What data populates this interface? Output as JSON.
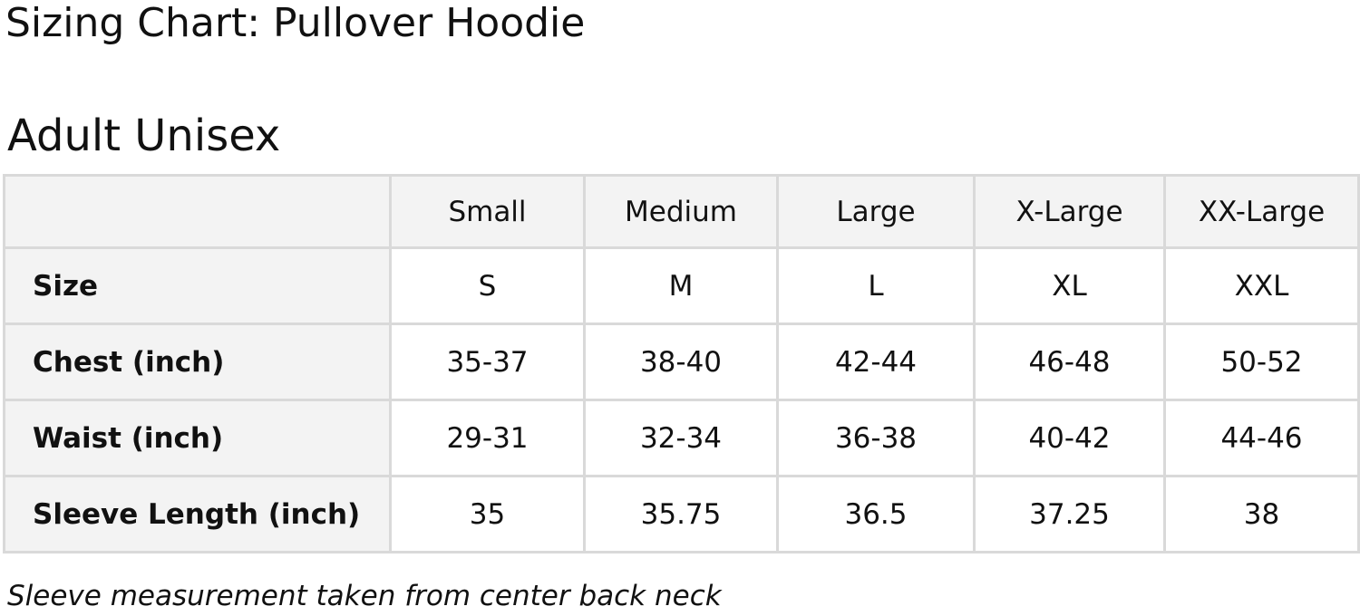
{
  "title": "Sizing Chart: Pullover Hoodie",
  "subtitle": "Adult Unisex",
  "table": {
    "columns": [
      "",
      "Small",
      "Medium",
      "Large",
      "X-Large",
      "XX-Large"
    ],
    "rows": [
      {
        "label": "Size",
        "values": [
          "S",
          "M",
          "L",
          "XL",
          "XXL"
        ]
      },
      {
        "label": "Chest (inch)",
        "values": [
          "35-37",
          "38-40",
          "42-44",
          "46-48",
          "50-52"
        ]
      },
      {
        "label": "Waist (inch)",
        "values": [
          "29-31",
          "32-34",
          "36-38",
          "40-42",
          "44-46"
        ]
      },
      {
        "label": "Sleeve Length (inch)",
        "values": [
          "35",
          "35.75",
          "36.5",
          "37.25",
          "38"
        ]
      }
    ]
  },
  "footnote": "Sleeve measurement taken from center back neck",
  "colors": {
    "header_bg": "#f3f3f3",
    "border": "#d9d9d9",
    "text": "#111111"
  }
}
